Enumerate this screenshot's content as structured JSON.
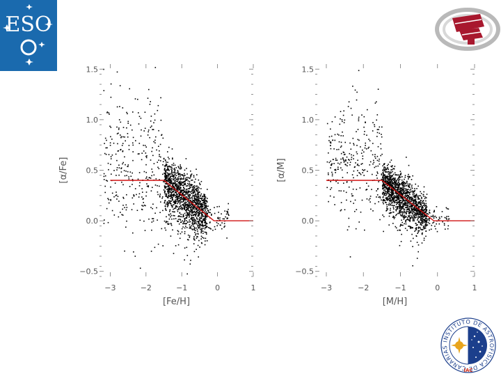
{
  "logos": {
    "eso": {
      "text": "ESO",
      "color": "#1a6aae"
    },
    "grantecan": {
      "color": "#a8182e"
    },
    "iac": {
      "text": "INSTITUTO DE ASTROFISICA DE CANARIAS",
      "short": "IAC",
      "color": "#1c3f8c"
    }
  },
  "colors": {
    "points": "#000000",
    "fit": "#d01010",
    "axis": "#777777"
  },
  "chart_data": [
    {
      "type": "scatter",
      "title": "",
      "xlabel": "[Fe/H]",
      "ylabel": "[α/Fe]",
      "xlim": [
        -3.3,
        1.0
      ],
      "ylim": [
        -0.55,
        1.55
      ],
      "xticks": [
        -3,
        -2,
        -1,
        0,
        1
      ],
      "xtick_labels": [
        "−3",
        "−2",
        "−1",
        "0",
        "1"
      ],
      "yticks": [
        -0.5,
        0.0,
        0.5,
        1.0,
        1.5
      ],
      "ytick_labels": [
        "−0.5",
        "0.0",
        "0.5",
        "1.0",
        "1.5"
      ],
      "grid": false,
      "fit_line": {
        "x": [
          -3.0,
          -1.5,
          -0.1,
          1.0
        ],
        "y": [
          0.4,
          0.4,
          0.0,
          0.0
        ]
      },
      "point_clouds": [
        {
          "x_range": [
            -3.2,
            -1.5
          ],
          "center_y": 0.55,
          "spread_y": 0.35,
          "count": 330
        },
        {
          "x_range": [
            -1.5,
            -0.3
          ],
          "center_y": 0.2,
          "spread_y": 0.12,
          "count": 1150
        },
        {
          "x_range": [
            -1.5,
            -0.5
          ],
          "center_y": -0.05,
          "spread_y": 0.2,
          "count": 260
        },
        {
          "x_range": [
            -0.5,
            0.3
          ],
          "center_y": 0.02,
          "spread_y": 0.08,
          "count": 90
        }
      ]
    },
    {
      "type": "scatter",
      "title": "",
      "xlabel": "[M/H]",
      "ylabel": "[α/M]",
      "xlim": [
        -3.3,
        1.0
      ],
      "ylim": [
        -0.55,
        1.55
      ],
      "xticks": [
        -3,
        -2,
        -1,
        0,
        1
      ],
      "xtick_labels": [
        "−3",
        "−2",
        "−1",
        "0",
        "1"
      ],
      "yticks": [
        -0.5,
        0.0,
        0.5,
        1.0,
        1.5
      ],
      "ytick_labels": [
        "−0.5",
        "0.0",
        "0.5",
        "1.0",
        "1.5"
      ],
      "grid": false,
      "fit_line": {
        "x": [
          -3.0,
          -1.5,
          -0.1,
          1.0
        ],
        "y": [
          0.4,
          0.4,
          0.0,
          0.0
        ]
      },
      "point_clouds": [
        {
          "x_range": [
            -3.0,
            -1.5
          ],
          "center_y": 0.55,
          "spread_y": 0.3,
          "count": 300
        },
        {
          "x_range": [
            -1.5,
            -0.3
          ],
          "center_y": 0.2,
          "spread_y": 0.1,
          "count": 1250
        },
        {
          "x_range": [
            -1.5,
            -0.5
          ],
          "center_y": -0.02,
          "spread_y": 0.15,
          "count": 180
        },
        {
          "x_range": [
            -0.5,
            0.3
          ],
          "center_y": 0.02,
          "spread_y": 0.06,
          "count": 80
        }
      ]
    }
  ]
}
